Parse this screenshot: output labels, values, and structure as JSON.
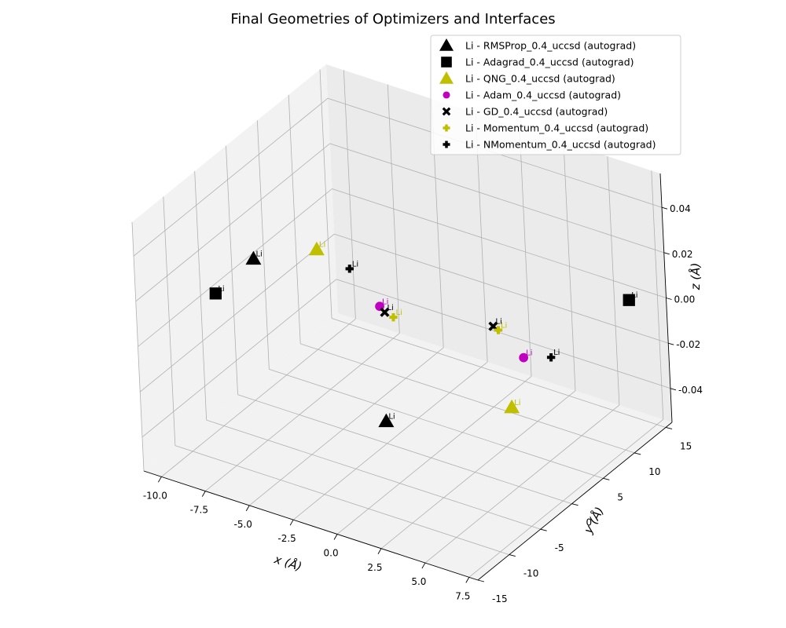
{
  "chart_data": {
    "type": "scatter",
    "title": "Final Geometries of Optimizers and Interfaces",
    "xlabel": "x (Å)",
    "ylabel": "y (Å)",
    "zlabel": "z (Å)",
    "xlim": [
      -11,
      8
    ],
    "ylim": [
      -15,
      16
    ],
    "zlim": [
      -0.055,
      0.055
    ],
    "xticks": [
      "-10.0",
      "-7.5",
      "-5.0",
      "-2.5",
      "0.0",
      "2.5",
      "5.0",
      "7.5"
    ],
    "yticks": [
      "-15",
      "-10",
      "-5",
      "0",
      "5",
      "10",
      "15"
    ],
    "zticks": [
      "-0.04",
      "-0.02",
      "0.00",
      "0.02",
      "0.04"
    ],
    "grid": true,
    "legend_position": "top-right",
    "point_label": "Li",
    "series": [
      {
        "name": "Li - RMSProp_0.4_uccsd (autograd)",
        "color": "#000000",
        "marker": "triangle",
        "points": [
          {
            "x": -10.7,
            "y": 2.6,
            "z": 0
          },
          {
            "x": 2.8,
            "y": -14.1,
            "z": 0
          }
        ]
      },
      {
        "name": "Li - Adagrad_0.4_uccsd (autograd)",
        "color": "#000000",
        "marker": "square",
        "points": [
          {
            "x": -10.5,
            "y": -4.0,
            "z": 0
          },
          {
            "x": 6.6,
            "y": 14.0,
            "z": 0
          }
        ]
      },
      {
        "name": "Li - QNG_0.4_uccsd (autograd)",
        "color": "#bfbf00",
        "marker": "triangle",
        "points": [
          {
            "x": -8.6,
            "y": 6.8,
            "z": 0
          },
          {
            "x": 7.2,
            "y": -6.4,
            "z": 0
          }
        ]
      },
      {
        "name": "Li - Adam_0.4_uccsd (autograd)",
        "color": "#bf00bf",
        "marker": "circle",
        "points": [
          {
            "x": -3.2,
            "y": 1.7,
            "z": 0
          },
          {
            "x": 5.2,
            "y": 1.1,
            "z": 0
          }
        ]
      },
      {
        "name": "Li - GD_0.4_uccsd (autograd)",
        "color": "#000000",
        "marker": "x",
        "points": [
          {
            "x": -2.7,
            "y": 1.1,
            "z": 0
          },
          {
            "x": 2.4,
            "y": 4.1,
            "z": 0
          }
        ]
      },
      {
        "name": "Li - Momentum_0.4_uccsd (autograd)",
        "color": "#bfbf00",
        "marker": "plus",
        "points": [
          {
            "x": -2.1,
            "y": 0.8,
            "z": 0
          },
          {
            "x": 2.8,
            "y": 3.8,
            "z": 0
          }
        ]
      },
      {
        "name": "Li - NMomentum_0.4_uccsd (autograd)",
        "color": "#000000",
        "marker": "plus",
        "points": [
          {
            "x": -6.3,
            "y": 5.6,
            "z": 0
          },
          {
            "x": 6.3,
            "y": 2.4,
            "z": 0
          }
        ]
      }
    ]
  }
}
